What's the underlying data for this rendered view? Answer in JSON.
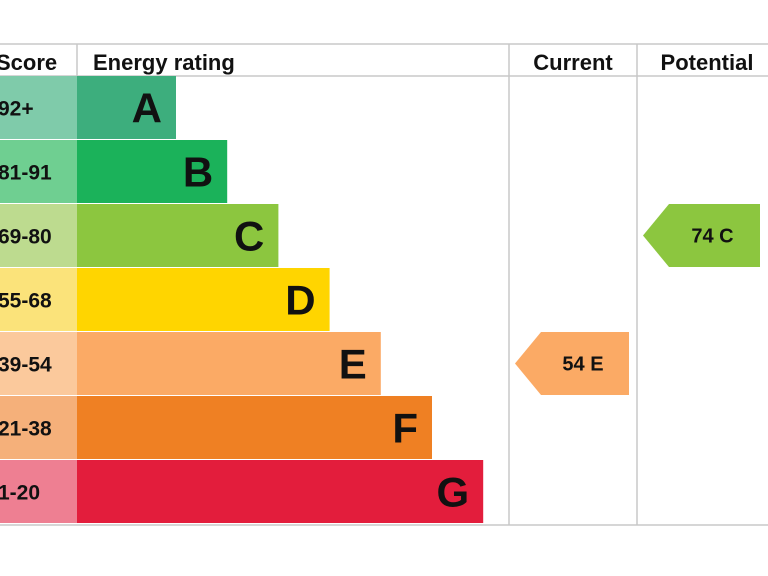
{
  "chart_data": {
    "type": "bar",
    "columns": {
      "score": "Score",
      "rating": "Energy rating",
      "current": "Current",
      "potential": "Potential"
    },
    "bands": [
      {
        "letter": "A",
        "range": "92+",
        "min": 92,
        "max": 100,
        "color": "#3dae7d",
        "score_color": "#7fcbaa"
      },
      {
        "letter": "B",
        "range": "81-91",
        "min": 81,
        "max": 91,
        "color": "#1bb25a",
        "score_color": "#6fcf91"
      },
      {
        "letter": "C",
        "range": "69-80",
        "min": 69,
        "max": 80,
        "color": "#8cc63f",
        "score_color": "#bddb8f"
      },
      {
        "letter": "D",
        "range": "55-68",
        "min": 55,
        "max": 68,
        "color": "#ffd500",
        "score_color": "#fbe37a"
      },
      {
        "letter": "E",
        "range": "39-54",
        "min": 39,
        "max": 54,
        "color": "#fbaa65",
        "score_color": "#fbc99c"
      },
      {
        "letter": "F",
        "range": "21-38",
        "min": 21,
        "max": 38,
        "color": "#ef8023",
        "score_color": "#f5b07a"
      },
      {
        "letter": "G",
        "range": "1-20",
        "min": 1,
        "max": 20,
        "color": "#e31d3c",
        "score_color": "#ee7f92"
      }
    ],
    "current": {
      "value": 54,
      "band": "E",
      "label": "54 E",
      "color": "#fbaa65"
    },
    "potential": {
      "value": 74,
      "band": "C",
      "label": "74 C",
      "color": "#8cc63f"
    }
  }
}
